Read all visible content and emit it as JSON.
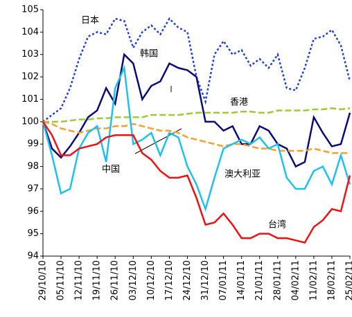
{
  "chart_data": {
    "type": "line",
    "categories": [
      "29/10/10",
      null,
      "05/11/10",
      null,
      "12/11/10",
      null,
      "19/11/10",
      null,
      "26/11/10",
      null,
      "03/12/10",
      null,
      "10/12/10",
      null,
      "17/12/10",
      null,
      "24/12/10",
      null,
      "31/12/10",
      null,
      "07/01/11",
      null,
      "14/01/11",
      null,
      "21/01/11",
      null,
      "28/01/11",
      null,
      "04/02/11",
      null,
      "11/02/11",
      null,
      "18/02/11",
      null,
      "25/02/11"
    ],
    "series": [
      {
        "name": "日本",
        "color": "#1f3fd6",
        "dash": "3,3",
        "values": [
          100.0,
          100.3,
          100.6,
          101.5,
          102.8,
          103.8,
          104.0,
          103.9,
          104.6,
          104.5,
          103.3,
          104.0,
          104.3,
          103.9,
          104.6,
          104.2,
          104.0,
          102.0,
          100.9,
          103.0,
          103.6,
          103.0,
          103.2,
          102.5,
          102.8,
          102.4,
          103.0,
          101.5,
          101.4,
          102.4,
          103.7,
          103.8,
          104.1,
          103.4,
          101.8
        ]
      },
      {
        "name": "韩国",
        "color": "#0a0a78",
        "dash": "",
        "values": [
          100,
          98.8,
          98.4,
          98.9,
          99.5,
          100.2,
          100.5,
          101.5,
          100.8,
          103.0,
          102.6,
          101.0,
          101.6,
          101.8,
          102.6,
          102.4,
          102.3,
          102.0,
          100.0,
          100.0,
          99.6,
          99.8,
          99.0,
          99.0,
          99.8,
          99.6,
          99.0,
          98.8,
          98.0,
          98.2,
          100.2,
          99.5,
          98.9,
          99.0,
          100.4
        ]
      },
      {
        "name": "香港",
        "color": "#9acd32",
        "dash": "9,4",
        "values": [
          100,
          100,
          100,
          100.05,
          100.1,
          100.1,
          100.15,
          100.15,
          100.2,
          100.2,
          100.2,
          100.2,
          100.3,
          100.3,
          100.3,
          100.3,
          100.35,
          100.4,
          100.4,
          100.4,
          100.4,
          100.4,
          100.45,
          100.45,
          100.4,
          100.4,
          100.5,
          100.5,
          100.5,
          100.5,
          100.55,
          100.55,
          100.6,
          100.55,
          100.6
        ]
      },
      {
        "name": "中国",
        "color": "#f5a030",
        "dash": "9,4",
        "values": [
          100,
          99.9,
          99.7,
          99.6,
          99.5,
          99.6,
          99.7,
          99.7,
          99.8,
          99.8,
          99.9,
          99.8,
          99.7,
          99.6,
          99.6,
          99.5,
          99.3,
          99.2,
          99.1,
          99.0,
          98.9,
          99.0,
          99.0,
          98.9,
          98.8,
          98.8,
          98.7,
          98.7,
          98.7,
          98.7,
          98.8,
          98.7,
          98.6,
          98.6,
          98.6
        ]
      },
      {
        "name": "澳大利亚",
        "color": "#1ec0f0",
        "dash": "",
        "values": [
          100,
          98.5,
          96.8,
          97.0,
          98.8,
          99.5,
          99.8,
          98.2,
          101.5,
          102.4,
          99.0,
          99.2,
          99.5,
          98.5,
          99.5,
          99.3,
          98.0,
          97.2,
          96.1,
          97.5,
          98.8,
          99.0,
          99.2,
          99.0,
          99.3,
          98.8,
          99.0,
          97.5,
          97.0,
          97.0,
          97.8,
          98.0,
          97.2,
          98.5,
          97.2
        ]
      },
      {
        "name": "台湾",
        "color": "#f01010",
        "dash": "",
        "values": [
          100,
          99.4,
          98.5,
          98.5,
          98.8,
          98.9,
          99.0,
          99.3,
          99.4,
          99.4,
          99.4,
          98.6,
          98.3,
          97.8,
          97.5,
          97.5,
          97.6,
          96.6,
          95.4,
          95.5,
          95.9,
          95.4,
          94.8,
          94.8,
          95.0,
          95.0,
          94.8,
          94.8,
          94.7,
          94.6,
          95.3,
          95.6,
          96.1,
          96.0,
          97.6
        ]
      }
    ],
    "ylim": [
      94,
      105
    ],
    "yticks": [
      94,
      95,
      96,
      97,
      98,
      99,
      100,
      101,
      102,
      103,
      104,
      105
    ]
  }
}
